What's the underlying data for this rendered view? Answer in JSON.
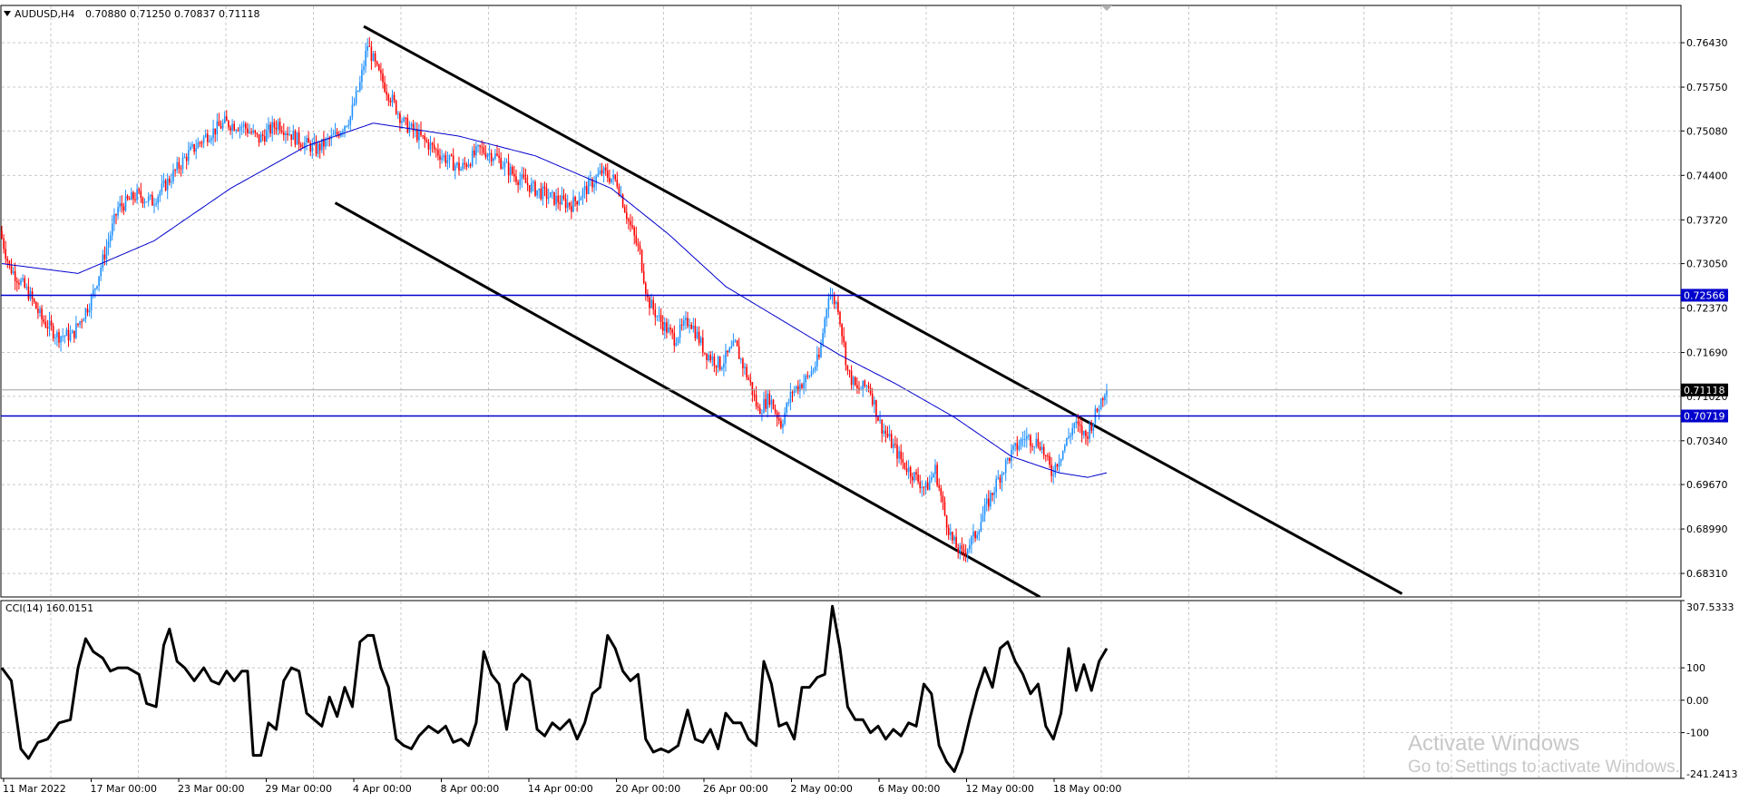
{
  "header": {
    "symbol": "AUDUSD,H4",
    "ohlc": "0.70880 0.71250 0.70837 0.71118"
  },
  "indicator": {
    "label": "CCI(14) 160.0151"
  },
  "watermark": {
    "line1": "Activate Windows",
    "line2": "Go to Settings to activate Windows."
  },
  "colors": {
    "bull": "#1E90FF",
    "bear": "#FF0000",
    "ma": "#0000CD",
    "hline": "#0000CD",
    "channel": "#000000",
    "grid": "#c8c8c8"
  },
  "chart_data": [
    {
      "type": "candlestick",
      "title": "AUDUSD,H4",
      "ylim": [
        0.6795,
        0.77
      ],
      "y_ticks": [
        "0.76430",
        "0.75750",
        "0.75080",
        "0.74400",
        "0.73720",
        "0.73050",
        "0.72370",
        "0.71690",
        "0.71020",
        "0.70340",
        "0.69670",
        "0.68990",
        "0.68310"
      ],
      "x_ticks": [
        "11 Mar 2022",
        "17 Mar 00:00",
        "23 Mar 00:00",
        "29 Mar 00:00",
        "4 Apr 00:00",
        "8 Apr 00:00",
        "14 Apr 00:00",
        "20 Apr 00:00",
        "26 Apr 00:00",
        "2 May 00:00",
        "6 May 00:00",
        "12 May 00:00",
        "18 May 00:00"
      ],
      "price_path": [
        [
          0,
          0.7355
        ],
        [
          5,
          0.73
        ],
        [
          15,
          0.726
        ],
        [
          22,
          0.722
        ],
        [
          30,
          0.7195
        ],
        [
          38,
          0.7195
        ],
        [
          48,
          0.725
        ],
        [
          55,
          0.732
        ],
        [
          62,
          0.739
        ],
        [
          72,
          0.741
        ],
        [
          80,
          0.74
        ],
        [
          88,
          0.743
        ],
        [
          98,
          0.747
        ],
        [
          108,
          0.75
        ],
        [
          118,
          0.752
        ],
        [
          128,
          0.7515
        ],
        [
          136,
          0.7495
        ],
        [
          146,
          0.752
        ],
        [
          156,
          0.7495
        ],
        [
          166,
          0.748
        ],
        [
          176,
          0.75
        ],
        [
          184,
          0.753
        ],
        [
          189,
          0.758
        ],
        [
          193,
          0.764
        ],
        [
          198,
          0.76
        ],
        [
          205,
          0.756
        ],
        [
          212,
          0.752
        ],
        [
          222,
          0.7495
        ],
        [
          232,
          0.747
        ],
        [
          242,
          0.745
        ],
        [
          252,
          0.748
        ],
        [
          260,
          0.747
        ],
        [
          270,
          0.744
        ],
        [
          280,
          0.742
        ],
        [
          290,
          0.7405
        ],
        [
          300,
          0.7395
        ],
        [
          308,
          0.742
        ],
        [
          316,
          0.7445
        ],
        [
          324,
          0.743
        ],
        [
          330,
          0.737
        ],
        [
          336,
          0.732
        ],
        [
          340,
          0.725
        ],
        [
          346,
          0.722
        ],
        [
          354,
          0.719
        ],
        [
          362,
          0.722
        ],
        [
          370,
          0.717
        ],
        [
          378,
          0.715
        ],
        [
          386,
          0.718
        ],
        [
          394,
          0.712
        ],
        [
          398,
          0.708
        ],
        [
          404,
          0.71
        ],
        [
          410,
          0.706
        ],
        [
          416,
          0.711
        ],
        [
          424,
          0.713
        ],
        [
          430,
          0.716
        ],
        [
          435,
          0.726
        ],
        [
          440,
          0.724
        ],
        [
          445,
          0.714
        ],
        [
          450,
          0.711
        ],
        [
          456,
          0.712
        ],
        [
          462,
          0.706
        ],
        [
          468,
          0.703
        ],
        [
          474,
          0.7
        ],
        [
          480,
          0.698
        ],
        [
          486,
          0.696
        ],
        [
          491,
          0.699
        ],
        [
          496,
          0.692
        ],
        [
          500,
          0.688
        ],
        [
          505,
          0.686
        ],
        [
          512,
          0.689
        ],
        [
          518,
          0.6935
        ],
        [
          524,
          0.6975
        ],
        [
          530,
          0.701
        ],
        [
          538,
          0.704
        ],
        [
          546,
          0.703
        ],
        [
          552,
          0.6985
        ],
        [
          558,
          0.702
        ],
        [
          564,
          0.706
        ],
        [
          570,
          0.704
        ],
        [
          576,
          0.708
        ],
        [
          580,
          0.7112
        ]
      ],
      "moving_average": [
        [
          0,
          0.7305
        ],
        [
          40,
          0.729
        ],
        [
          80,
          0.734
        ],
        [
          120,
          0.742
        ],
        [
          160,
          0.7485
        ],
        [
          195,
          0.752
        ],
        [
          240,
          0.75
        ],
        [
          280,
          0.747
        ],
        [
          320,
          0.742
        ],
        [
          350,
          0.735
        ],
        [
          380,
          0.727
        ],
        [
          420,
          0.72
        ],
        [
          440,
          0.7165
        ],
        [
          470,
          0.712
        ],
        [
          500,
          0.707
        ],
        [
          530,
          0.701
        ],
        [
          555,
          0.6985
        ],
        [
          570,
          0.6978
        ],
        [
          580,
          0.6985
        ]
      ],
      "horizontal_lines": [
        {
          "price": 0.72566,
          "label": "0.72566"
        },
        {
          "price": 0.70719,
          "label": "0.70719"
        }
      ],
      "current_price": {
        "price": 0.71118,
        "label": "0.71118"
      },
      "channel": [
        {
          "from": [
            190,
            0.7668
          ],
          "to": [
            735,
            0.68
          ]
        },
        {
          "from": [
            175,
            0.7398
          ],
          "to": [
            545,
            0.6795
          ]
        }
      ],
      "grid": true
    },
    {
      "type": "line",
      "title": "CCI(14) 160.0151",
      "ylim": [
        -241.2413,
        307.5333
      ],
      "y_ticks": [
        "307.5333",
        "100",
        "0.00",
        "-100",
        "-241.2413"
      ],
      "values": [
        [
          0,
          100
        ],
        [
          5,
          60
        ],
        [
          10,
          -150
        ],
        [
          14,
          -180
        ],
        [
          19,
          -130
        ],
        [
          24,
          -120
        ],
        [
          30,
          -70
        ],
        [
          36,
          -60
        ],
        [
          40,
          100
        ],
        [
          44,
          190
        ],
        [
          48,
          150
        ],
        [
          53,
          130
        ],
        [
          57,
          90
        ],
        [
          61,
          100
        ],
        [
          66,
          100
        ],
        [
          72,
          80
        ],
        [
          76,
          -10
        ],
        [
          81,
          -20
        ],
        [
          85,
          170
        ],
        [
          88,
          220
        ],
        [
          92,
          120
        ],
        [
          96,
          100
        ],
        [
          101,
          60
        ],
        [
          106,
          100
        ],
        [
          110,
          60
        ],
        [
          114,
          50
        ],
        [
          118,
          90
        ],
        [
          122,
          60
        ],
        [
          126,
          90
        ],
        [
          129,
          90
        ],
        [
          132,
          -170
        ],
        [
          136,
          -170
        ],
        [
          140,
          -70
        ],
        [
          144,
          -90
        ],
        [
          148,
          60
        ],
        [
          152,
          100
        ],
        [
          156,
          90
        ],
        [
          160,
          -40
        ],
        [
          164,
          -60
        ],
        [
          168,
          -80
        ],
        [
          172,
          10
        ],
        [
          176,
          -50
        ],
        [
          180,
          40
        ],
        [
          184,
          -20
        ],
        [
          188,
          180
        ],
        [
          192,
          200
        ],
        [
          195,
          200
        ],
        [
          199,
          100
        ],
        [
          203,
          40
        ],
        [
          207,
          -120
        ],
        [
          211,
          -140
        ],
        [
          215,
          -150
        ],
        [
          219,
          -110
        ],
        [
          224,
          -80
        ],
        [
          229,
          -100
        ],
        [
          233,
          -80
        ],
        [
          237,
          -130
        ],
        [
          241,
          -120
        ],
        [
          245,
          -140
        ],
        [
          249,
          -70
        ],
        [
          253,
          150
        ],
        [
          257,
          80
        ],
        [
          261,
          50
        ],
        [
          265,
          -90
        ],
        [
          269,
          50
        ],
        [
          273,
          80
        ],
        [
          277,
          60
        ],
        [
          281,
          -90
        ],
        [
          285,
          -110
        ],
        [
          289,
          -70
        ],
        [
          293,
          -90
        ],
        [
          298,
          -60
        ],
        [
          302,
          -120
        ],
        [
          306,
          -70
        ],
        [
          310,
          20
        ],
        [
          314,
          40
        ],
        [
          318,
          200
        ],
        [
          322,
          160
        ],
        [
          326,
          90
        ],
        [
          330,
          60
        ],
        [
          334,
          80
        ],
        [
          338,
          -120
        ],
        [
          342,
          -160
        ],
        [
          346,
          -150
        ],
        [
          350,
          -160
        ],
        [
          355,
          -140
        ],
        [
          360,
          -30
        ],
        [
          364,
          -120
        ],
        [
          368,
          -130
        ],
        [
          372,
          -90
        ],
        [
          376,
          -150
        ],
        [
          380,
          -40
        ],
        [
          384,
          -70
        ],
        [
          388,
          -70
        ],
        [
          392,
          -120
        ],
        [
          396,
          -140
        ],
        [
          400,
          120
        ],
        [
          404,
          50
        ],
        [
          408,
          -80
        ],
        [
          412,
          -70
        ],
        [
          416,
          -120
        ],
        [
          420,
          40
        ],
        [
          424,
          40
        ],
        [
          428,
          70
        ],
        [
          432,
          80
        ],
        [
          436,
          290
        ],
        [
          440,
          160
        ],
        [
          444,
          -20
        ],
        [
          448,
          -60
        ],
        [
          452,
          -60
        ],
        [
          456,
          -100
        ],
        [
          460,
          -80
        ],
        [
          464,
          -120
        ],
        [
          468,
          -90
        ],
        [
          472,
          -110
        ],
        [
          476,
          -70
        ],
        [
          480,
          -80
        ],
        [
          484,
          50
        ],
        [
          488,
          20
        ],
        [
          492,
          -140
        ],
        [
          496,
          -190
        ],
        [
          500,
          -220
        ],
        [
          504,
          -160
        ],
        [
          508,
          -60
        ],
        [
          512,
          30
        ],
        [
          516,
          100
        ],
        [
          520,
          40
        ],
        [
          524,
          160
        ],
        [
          528,
          180
        ],
        [
          532,
          120
        ],
        [
          536,
          80
        ],
        [
          540,
          20
        ],
        [
          544,
          50
        ],
        [
          548,
          -80
        ],
        [
          552,
          -120
        ],
        [
          556,
          -40
        ],
        [
          560,
          160
        ],
        [
          564,
          30
        ],
        [
          568,
          110
        ],
        [
          572,
          30
        ],
        [
          576,
          120
        ],
        [
          580,
          160
        ]
      ],
      "grid": true
    }
  ]
}
